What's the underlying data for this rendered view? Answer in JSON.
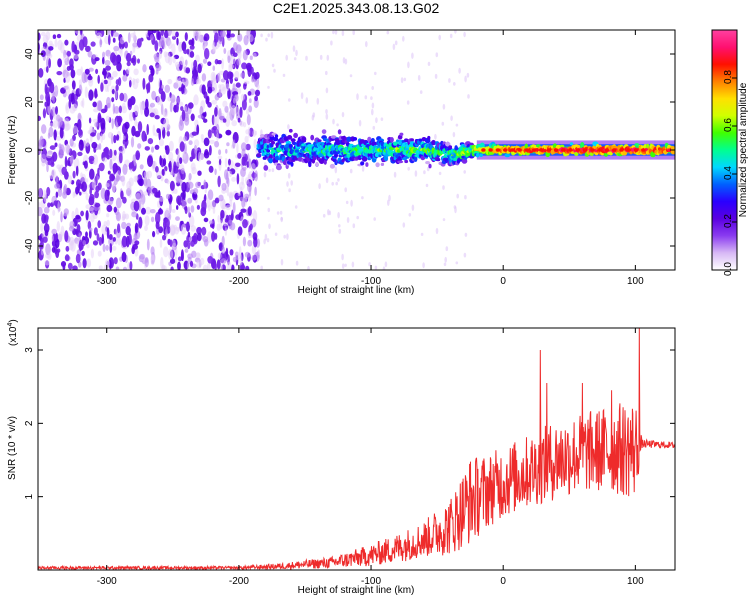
{
  "title": "C2E1.2025.343.08.13.G02",
  "chart_data": [
    {
      "type": "heatmap",
      "xlabel": "Height of straight line (km)",
      "ylabel": "Frequency (Hz)",
      "xlim": [
        -352,
        130
      ],
      "ylim": [
        -50,
        50
      ],
      "xticks": [
        -300,
        -200,
        -100,
        0,
        100
      ],
      "yticks": [
        -40,
        -20,
        0,
        20,
        40
      ],
      "colorbar": {
        "label": "Normalized spectral amplitude",
        "range": [
          0.0,
          1.0
        ],
        "ticks": [
          0.0,
          0.2,
          0.4,
          0.6,
          0.8
        ],
        "colormap": [
          "#ffffff",
          "#d7b8f5",
          "#8a3cf0",
          "#5a00e0",
          "#2a00ff",
          "#0060ff",
          "#00d8ff",
          "#00ff90",
          "#40ff00",
          "#d0ff00",
          "#ffe000",
          "#ff8000",
          "#ff1000",
          "#ff1070",
          "#ff40a0"
        ]
      },
      "noise_region": {
        "x_from": -352,
        "x_to": -185,
        "amplitude": 0.12
      },
      "carrier_line": [
        {
          "x": -185,
          "f_center": 0,
          "f_spread": 8,
          "amplitude": 0.4
        },
        {
          "x": -150,
          "f_center": 0,
          "f_spread": 7,
          "amplitude": 0.45
        },
        {
          "x": -100,
          "f_center": 0,
          "f_spread": 6,
          "amplitude": 0.5
        },
        {
          "x": -60,
          "f_center": 0,
          "f_spread": 5,
          "amplitude": 0.55
        },
        {
          "x": -40,
          "f_center": -2,
          "f_spread": 5,
          "amplitude": 0.5
        },
        {
          "x": -20,
          "f_center": 0,
          "f_spread": 3,
          "amplitude": 0.7
        },
        {
          "x": 0,
          "f_center": 0,
          "f_spread": 2,
          "amplitude": 0.85
        },
        {
          "x": 50,
          "f_center": 0,
          "f_spread": 2,
          "amplitude": 0.95
        },
        {
          "x": 100,
          "f_center": 0,
          "f_spread": 2,
          "amplitude": 0.95
        },
        {
          "x": 130,
          "f_center": 0,
          "f_spread": 2,
          "amplitude": 0.9
        }
      ]
    },
    {
      "type": "line",
      "xlabel": "Height of straight line (km)",
      "ylabel": "SNR (10 * v/v)",
      "y_multiplier": "(x10",
      "y_multiplier_exp": "4",
      "xlim": [
        -352,
        130
      ],
      "ylim": [
        0,
        3.3
      ],
      "xticks": [
        -300,
        -200,
        -100,
        0,
        100
      ],
      "yticks": [
        1,
        2,
        3
      ],
      "series": [
        {
          "color": "#ee2b2b",
          "envelope": [
            {
              "x": -352,
              "mean": 0.03,
              "amp": 0.02
            },
            {
              "x": -200,
              "mean": 0.03,
              "amp": 0.02
            },
            {
              "x": -170,
              "mean": 0.05,
              "amp": 0.04
            },
            {
              "x": -130,
              "mean": 0.1,
              "amp": 0.08
            },
            {
              "x": -100,
              "mean": 0.2,
              "amp": 0.15
            },
            {
              "x": -80,
              "mean": 0.3,
              "amp": 0.2
            },
            {
              "x": -60,
              "mean": 0.42,
              "amp": 0.25
            },
            {
              "x": -40,
              "mean": 0.6,
              "amp": 0.4
            },
            {
              "x": -25,
              "mean": 0.95,
              "amp": 0.6
            },
            {
              "x": -10,
              "mean": 1.1,
              "amp": 0.5
            },
            {
              "x": 0,
              "mean": 1.2,
              "amp": 0.5
            },
            {
              "x": 20,
              "mean": 1.35,
              "amp": 0.5
            },
            {
              "x": 40,
              "mean": 1.5,
              "amp": 0.55
            },
            {
              "x": 60,
              "mean": 1.6,
              "amp": 0.55
            },
            {
              "x": 80,
              "mean": 1.65,
              "amp": 0.6
            },
            {
              "x": 100,
              "mean": 1.65,
              "amp": 0.7
            },
            {
              "x": 105,
              "mean": 1.72,
              "amp": 0.06
            },
            {
              "x": 130,
              "mean": 1.7,
              "amp": 0.04
            }
          ],
          "spikes": [
            {
              "x": 28,
              "y": 3.0
            },
            {
              "x": 103,
              "y": 3.3
            },
            {
              "x": 60,
              "y": 2.55
            },
            {
              "x": 82,
              "y": 2.45
            },
            {
              "x": 33,
              "y": 2.55
            }
          ]
        }
      ]
    }
  ]
}
